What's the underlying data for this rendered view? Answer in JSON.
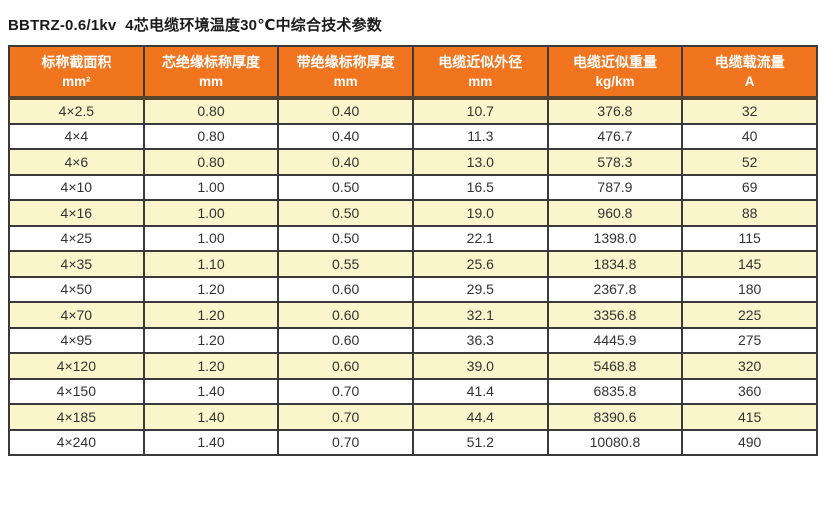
{
  "page": {
    "title": "BBTRZ-0.6/1kv  4芯电缆环境温度30℃中综合技术参数"
  },
  "colors": {
    "header_bg": "#F0751E",
    "header_text": "#FFFFFF",
    "row_alt_bg": "#FBF5CB",
    "row_bg": "#FFFFFF",
    "grid_border": "#3A3A3A",
    "header_divider": "#55442E",
    "cell_text": "#333333",
    "title_text": "#1A1A1A"
  },
  "table": {
    "columns": [
      {
        "line1": "标称截面积",
        "line2": "mm²"
      },
      {
        "line1": "芯绝缘标称厚度",
        "line2": "mm"
      },
      {
        "line1": "带绝缘标称厚度",
        "line2": "mm"
      },
      {
        "line1": "电缆近似外径",
        "line2": "mm"
      },
      {
        "line1": "电缆近似重量",
        "line2": "kg/km"
      },
      {
        "line1": "电缆载流量",
        "line2": "A"
      }
    ],
    "rows": [
      [
        "4×2.5",
        "0.80",
        "0.40",
        "10.7",
        "376.8",
        "32"
      ],
      [
        "4×4",
        "0.80",
        "0.40",
        "11.3",
        "476.7",
        "40"
      ],
      [
        "4×6",
        "0.80",
        "0.40",
        "13.0",
        "578.3",
        "52"
      ],
      [
        "4×10",
        "1.00",
        "0.50",
        "16.5",
        "787.9",
        "69"
      ],
      [
        "4×16",
        "1.00",
        "0.50",
        "19.0",
        "960.8",
        "88"
      ],
      [
        "4×25",
        "1.00",
        "0.50",
        "22.1",
        "1398.0",
        "115"
      ],
      [
        "4×35",
        "1.10",
        "0.55",
        "25.6",
        "1834.8",
        "145"
      ],
      [
        "4×50",
        "1.20",
        "0.60",
        "29.5",
        "2367.8",
        "180"
      ],
      [
        "4×70",
        "1.20",
        "0.60",
        "32.1",
        "3356.8",
        "225"
      ],
      [
        "4×95",
        "1.20",
        "0.60",
        "36.3",
        "4445.9",
        "275"
      ],
      [
        "4×120",
        "1.20",
        "0.60",
        "39.0",
        "5468.8",
        "320"
      ],
      [
        "4×150",
        "1.40",
        "0.70",
        "41.4",
        "6835.8",
        "360"
      ],
      [
        "4×185",
        "1.40",
        "0.70",
        "44.4",
        "8390.6",
        "415"
      ],
      [
        "4×240",
        "1.40",
        "0.70",
        "51.2",
        "10080.8",
        "490"
      ]
    ]
  }
}
